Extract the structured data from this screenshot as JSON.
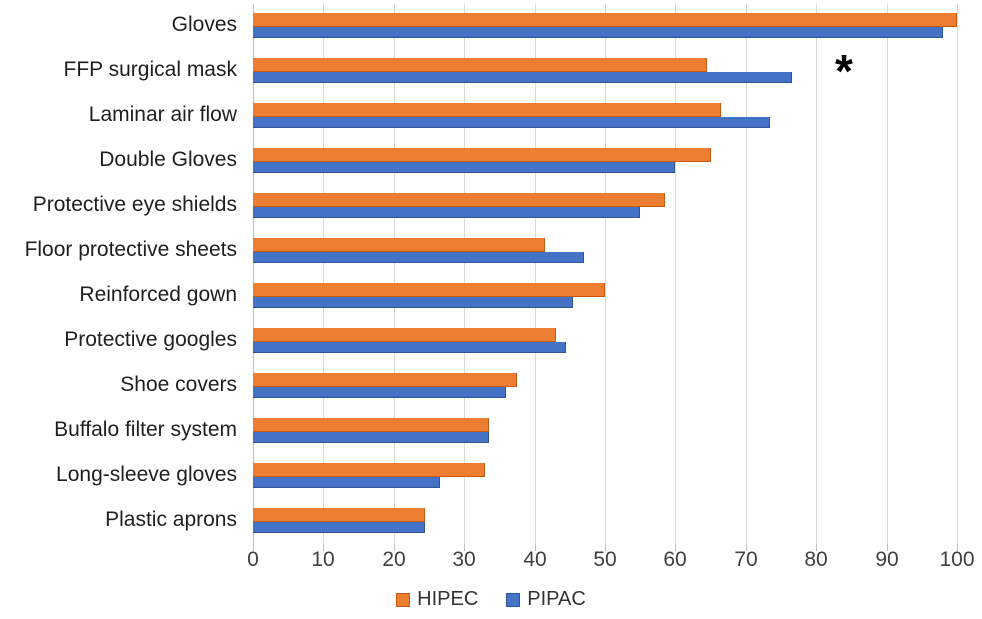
{
  "chart_data": {
    "type": "bar",
    "orientation": "horizontal",
    "title": "",
    "xlabel": "",
    "ylabel": "",
    "xlim": [
      0,
      100
    ],
    "x_ticks": [
      0,
      10,
      20,
      30,
      40,
      50,
      60,
      70,
      80,
      90,
      100
    ],
    "grid": "vertical-gridlines-on",
    "legend_position": "bottom-center",
    "categories": [
      "Gloves",
      "FFP surgical mask",
      "Laminar air flow",
      "Double Gloves",
      "Protective eye shields",
      "Floor protective sheets",
      "Reinforced gown",
      "Protective googles",
      "Shoe covers",
      "Buffalo filter system",
      "Long-sleeve gloves",
      "Plastic aprons"
    ],
    "series": [
      {
        "name": "HIPEC",
        "color": "#ED7D31",
        "border_color": "#C55A11",
        "values": [
          100,
          64.5,
          66.5,
          65,
          58.5,
          41.5,
          50,
          43,
          37.5,
          33.5,
          33,
          24.5
        ]
      },
      {
        "name": "PIPAC",
        "color": "#4472C4",
        "border_color": "#2F5597",
        "values": [
          98,
          76.5,
          73.5,
          60,
          55,
          47,
          45.5,
          44.5,
          36,
          33.5,
          26.5,
          24.5
        ]
      }
    ],
    "annotations": [
      {
        "text": "*",
        "category": "FFP surgical mask",
        "x_value": 84
      }
    ]
  },
  "colors": {
    "gridline": "#D9D9D9",
    "axis_text": "#404040",
    "category_text": "#1F1F1F",
    "background": "#FFFFFF"
  }
}
